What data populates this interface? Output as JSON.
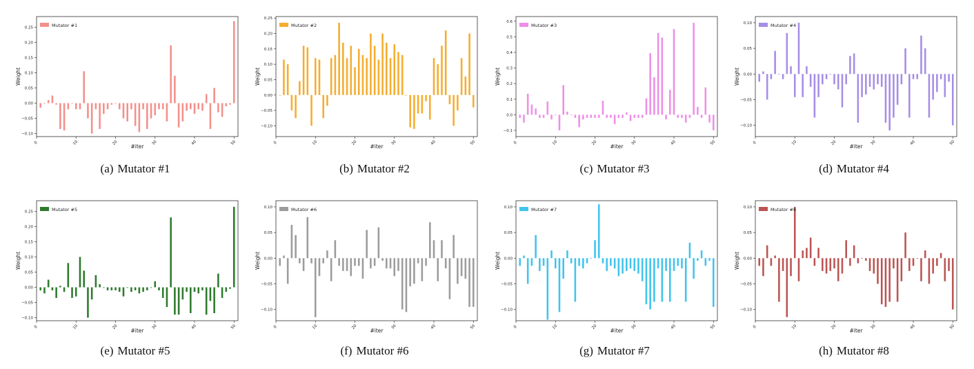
{
  "figure": {
    "ylabel": "Weight",
    "xlabel": "#iter",
    "captions": [
      {
        "label": "(a)",
        "text": "Mutator #1"
      },
      {
        "label": "(b)",
        "text": "Mutator #2"
      },
      {
        "label": "(c)",
        "text": "Mutator #3"
      },
      {
        "label": "(d)",
        "text": "Mutator #4"
      },
      {
        "label": "(e)",
        "text": "Mutator #5"
      },
      {
        "label": "(f)",
        "text": "Mutator #6"
      },
      {
        "label": "(g)",
        "text": "Mutator #7"
      },
      {
        "label": "(h)",
        "text": "Mutator #8"
      }
    ]
  },
  "chart_data": [
    {
      "type": "bar",
      "series": [
        {
          "name": "Mutator #1",
          "color": "#f4908a"
        }
      ],
      "xlabel": "#iter",
      "ylabel": "Weight",
      "xlim": [
        0,
        51
      ],
      "xticks": [
        0,
        10,
        20,
        30,
        40,
        50
      ],
      "ylim": [
        -0.11,
        0.285
      ],
      "yticks": [
        -0.1,
        -0.05,
        0.0,
        0.05,
        0.1,
        0.15,
        0.2,
        0.25
      ],
      "ytick_labels": [
        "−0.10",
        "−0.05",
        "0.00",
        "0.05",
        "0.10",
        "0.15",
        "0.20",
        "0.25"
      ],
      "x": [
        1,
        2,
        3,
        4,
        5,
        6,
        7,
        8,
        9,
        10,
        11,
        12,
        13,
        14,
        15,
        16,
        17,
        18,
        19,
        20,
        21,
        22,
        23,
        24,
        25,
        26,
        27,
        28,
        29,
        30,
        31,
        32,
        33,
        34,
        35,
        36,
        37,
        38,
        39,
        40,
        41,
        42,
        43,
        44,
        45,
        46,
        47,
        48,
        49,
        50
      ],
      "values": [
        -0.015,
        0,
        0.01,
        0.025,
        -0.005,
        -0.085,
        -0.09,
        -0.02,
        0,
        -0.02,
        -0.02,
        0.105,
        -0.05,
        -0.1,
        -0.02,
        -0.085,
        -0.035,
        -0.02,
        -0.005,
        0,
        -0.02,
        -0.05,
        -0.06,
        -0.02,
        -0.075,
        -0.095,
        -0.02,
        -0.085,
        -0.05,
        -0.04,
        -0.02,
        -0.02,
        -0.06,
        0.19,
        0.09,
        -0.08,
        -0.06,
        -0.025,
        -0.02,
        -0.035,
        -0.02,
        -0.025,
        0.03,
        -0.085,
        0.05,
        -0.03,
        -0.045,
        -0.01,
        -0.005,
        0.27
      ]
    },
    {
      "type": "bar",
      "series": [
        {
          "name": "Mutator #2",
          "color": "#f5ad2f"
        }
      ],
      "xlabel": "#iter",
      "ylabel": "Weight",
      "xlim": [
        0,
        51
      ],
      "xticks": [
        0,
        10,
        20,
        30,
        40,
        50
      ],
      "ylim": [
        -0.135,
        0.255
      ],
      "yticks": [
        -0.1,
        -0.05,
        0.0,
        0.05,
        0.1,
        0.15,
        0.2,
        0.25
      ],
      "ytick_labels": [
        "−0.10",
        "−0.05",
        "0.00",
        "0.05",
        "0.10",
        "0.15",
        "0.20",
        "0.25"
      ],
      "x": [
        1,
        2,
        3,
        4,
        5,
        6,
        7,
        8,
        9,
        10,
        11,
        12,
        13,
        14,
        15,
        16,
        17,
        18,
        19,
        20,
        21,
        22,
        23,
        24,
        25,
        26,
        27,
        28,
        29,
        30,
        31,
        32,
        33,
        34,
        35,
        36,
        37,
        38,
        39,
        40,
        41,
        42,
        43,
        44,
        45,
        46,
        47,
        48,
        49,
        50
      ],
      "values": [
        0,
        0.115,
        0.1,
        -0.05,
        -0.075,
        0.045,
        0.16,
        0.155,
        -0.1,
        0.12,
        0.115,
        -0.075,
        -0.035,
        0.12,
        0.13,
        0.235,
        0.17,
        0.12,
        0.16,
        0.09,
        0.15,
        0.13,
        0.12,
        0.2,
        0.16,
        0.115,
        0.2,
        0.17,
        0.12,
        0.165,
        0.14,
        0.13,
        0,
        -0.105,
        -0.11,
        -0.06,
        -0.06,
        -0.02,
        -0.08,
        0.12,
        0.1,
        0.16,
        0.21,
        -0.03,
        -0.1,
        -0.05,
        0.12,
        0.06,
        0.2,
        -0.04
      ]
    },
    {
      "type": "bar",
      "series": [
        {
          "name": "Mutator #3",
          "color": "#ee8fe8"
        }
      ],
      "xlabel": "#iter",
      "ylabel": "Weight",
      "xlim": [
        0,
        51
      ],
      "xticks": [
        0,
        10,
        20,
        30,
        40,
        50
      ],
      "ylim": [
        -0.14,
        0.63
      ],
      "yticks": [
        -0.1,
        0.0,
        0.1,
        0.2,
        0.3,
        0.4,
        0.5,
        0.6
      ],
      "ytick_labels": [
        "−0.1",
        "0.0",
        "0.1",
        "0.2",
        "0.3",
        "0.4",
        "0.5",
        "0.6"
      ],
      "x": [
        1,
        2,
        3,
        4,
        5,
        6,
        7,
        8,
        9,
        10,
        11,
        12,
        13,
        14,
        15,
        16,
        17,
        18,
        19,
        20,
        21,
        22,
        23,
        24,
        25,
        26,
        27,
        28,
        29,
        30,
        31,
        32,
        33,
        34,
        35,
        36,
        37,
        38,
        39,
        40,
        41,
        42,
        43,
        44,
        45,
        46,
        47,
        48,
        49,
        50
      ],
      "values": [
        -0.02,
        -0.05,
        0.135,
        0.065,
        0.04,
        -0.02,
        -0.02,
        0.085,
        -0.03,
        0,
        -0.1,
        0.19,
        0.02,
        0,
        -0.02,
        -0.08,
        -0.03,
        -0.02,
        -0.02,
        -0.02,
        -0.02,
        0.09,
        -0.02,
        -0.02,
        -0.06,
        -0.02,
        -0.02,
        0.015,
        -0.04,
        -0.02,
        -0.02,
        -0.02,
        0.105,
        0.395,
        0.24,
        0.525,
        0.495,
        -0.03,
        0.16,
        0.55,
        -0.02,
        -0.02,
        -0.05,
        -0.02,
        0.59,
        0.05,
        -0.02,
        0.175,
        -0.05,
        -0.1
      ]
    },
    {
      "type": "bar",
      "series": [
        {
          "name": "Mutator #4",
          "color": "#a68ee6"
        }
      ],
      "xlabel": "#iter",
      "ylabel": "Weight",
      "xlim": [
        0,
        51
      ],
      "xticks": [
        0,
        10,
        20,
        30,
        40,
        50
      ],
      "ylim": [
        -0.122,
        0.112
      ],
      "yticks": [
        -0.1,
        -0.05,
        0.0,
        0.05,
        0.1
      ],
      "ytick_labels": [
        "−0.10",
        "−0.05",
        "0.00",
        "0.05",
        "0.10"
      ],
      "x": [
        1,
        2,
        3,
        4,
        5,
        6,
        7,
        8,
        9,
        10,
        11,
        12,
        13,
        14,
        15,
        16,
        17,
        18,
        19,
        20,
        21,
        22,
        23,
        24,
        25,
        26,
        27,
        28,
        29,
        30,
        31,
        32,
        33,
        34,
        35,
        36,
        37,
        38,
        39,
        40,
        41,
        42,
        43,
        44,
        45,
        46,
        47,
        48,
        49,
        50
      ],
      "values": [
        -0.015,
        0.005,
        -0.05,
        -0.01,
        0.045,
        0,
        -0.01,
        0.08,
        0.015,
        -0.045,
        0.1,
        -0.045,
        0.015,
        -0.025,
        -0.085,
        -0.045,
        -0.02,
        -0.01,
        0,
        -0.02,
        -0.03,
        -0.065,
        -0.02,
        0.035,
        0.04,
        -0.095,
        -0.045,
        -0.04,
        -0.025,
        -0.03,
        -0.02,
        -0.025,
        -0.095,
        -0.11,
        -0.085,
        -0.06,
        -0.02,
        0.05,
        -0.085,
        -0.01,
        -0.01,
        0.075,
        0.05,
        -0.085,
        -0.05,
        -0.035,
        -0.01,
        -0.045,
        -0.015,
        -0.1
      ]
    },
    {
      "type": "bar",
      "series": [
        {
          "name": "Mutator #5",
          "color": "#2f7a2e"
        }
      ],
      "xlabel": "#iter",
      "ylabel": "Weight",
      "xlim": [
        0,
        51
      ],
      "xticks": [
        0,
        10,
        20,
        30,
        40,
        50
      ],
      "ylim": [
        -0.11,
        0.285
      ],
      "yticks": [
        -0.1,
        -0.05,
        0.0,
        0.05,
        0.1,
        0.15,
        0.2,
        0.25
      ],
      "ytick_labels": [
        "−0.10",
        "−0.05",
        "0.00",
        "0.05",
        "0.10",
        "0.15",
        "0.20",
        "0.25"
      ],
      "x": [
        1,
        2,
        3,
        4,
        5,
        6,
        7,
        8,
        9,
        10,
        11,
        12,
        13,
        14,
        15,
        16,
        17,
        18,
        19,
        20,
        21,
        22,
        23,
        24,
        25,
        26,
        27,
        28,
        29,
        30,
        31,
        32,
        33,
        34,
        35,
        36,
        37,
        38,
        39,
        40,
        41,
        42,
        43,
        44,
        45,
        46,
        47,
        48,
        49,
        50
      ],
      "values": [
        -0.01,
        -0.02,
        0.025,
        -0.01,
        -0.035,
        0.005,
        -0.015,
        0.08,
        -0.035,
        -0.03,
        0.1,
        0.055,
        -0.1,
        -0.04,
        0.04,
        0.01,
        0,
        -0.01,
        -0.01,
        -0.01,
        -0.015,
        -0.03,
        0,
        -0.015,
        -0.01,
        -0.02,
        -0.015,
        -0.01,
        0,
        0.02,
        -0.01,
        -0.035,
        -0.065,
        0.23,
        -0.09,
        -0.09,
        -0.04,
        -0.015,
        -0.085,
        -0.015,
        -0.02,
        -0.01,
        -0.09,
        -0.045,
        -0.085,
        0.045,
        -0.035,
        -0.015,
        -0.005,
        0.265
      ]
    },
    {
      "type": "bar",
      "series": [
        {
          "name": "Mutator #6",
          "color": "#9c9c9c"
        }
      ],
      "xlabel": "#iter",
      "ylabel": "Weight",
      "xlim": [
        0,
        51
      ],
      "xticks": [
        0,
        10,
        20,
        30,
        40,
        50
      ],
      "ylim": [
        -0.122,
        0.112
      ],
      "yticks": [
        -0.1,
        -0.05,
        0.0,
        0.05,
        0.1
      ],
      "ytick_labels": [
        "−0.10",
        "−0.05",
        "0.00",
        "0.05",
        "0.10"
      ],
      "x": [
        1,
        2,
        3,
        4,
        5,
        6,
        7,
        8,
        9,
        10,
        11,
        12,
        13,
        14,
        15,
        16,
        17,
        18,
        19,
        20,
        21,
        22,
        23,
        24,
        25,
        26,
        27,
        28,
        29,
        30,
        31,
        32,
        33,
        34,
        35,
        36,
        37,
        38,
        39,
        40,
        41,
        42,
        43,
        44,
        45,
        46,
        47,
        48,
        49,
        50
      ],
      "values": [
        -0.015,
        0.005,
        -0.05,
        0.065,
        0.045,
        -0.01,
        -0.025,
        0.08,
        -0.01,
        -0.115,
        -0.035,
        -0.01,
        0.015,
        -0.045,
        0.035,
        -0.015,
        -0.025,
        -0.025,
        -0.035,
        -0.015,
        -0.015,
        -0.04,
        0.055,
        -0.02,
        -0.015,
        0.06,
        -0.005,
        -0.02,
        -0.02,
        -0.035,
        -0.025,
        -0.1,
        -0.105,
        -0.055,
        -0.05,
        -0.01,
        -0.045,
        -0.015,
        0.07,
        0.035,
        -0.045,
        0.035,
        -0.02,
        -0.08,
        0.045,
        -0.05,
        -0.035,
        -0.04,
        -0.095,
        -0.095
      ]
    },
    {
      "type": "bar",
      "series": [
        {
          "name": "Mutator #7",
          "color": "#40c4ee"
        }
      ],
      "xlabel": "#iter",
      "ylabel": "Weight",
      "xlim": [
        0,
        51
      ],
      "xticks": [
        0,
        10,
        20,
        30,
        40,
        50
      ],
      "ylim": [
        -0.122,
        0.112
      ],
      "yticks": [
        -0.1,
        -0.05,
        0.0,
        0.05,
        0.1
      ],
      "ytick_labels": [
        "−0.10",
        "−0.05",
        "0.00",
        "0.05",
        "0.10"
      ],
      "x": [
        1,
        2,
        3,
        4,
        5,
        6,
        7,
        8,
        9,
        10,
        11,
        12,
        13,
        14,
        15,
        16,
        17,
        18,
        19,
        20,
        21,
        22,
        23,
        24,
        25,
        26,
        27,
        28,
        29,
        30,
        31,
        32,
        33,
        34,
        35,
        36,
        37,
        38,
        39,
        40,
        41,
        42,
        43,
        44,
        45,
        46,
        47,
        48,
        49,
        50
      ],
      "values": [
        -0.015,
        0.005,
        -0.05,
        -0.015,
        0.045,
        -0.025,
        -0.015,
        -0.12,
        0.015,
        -0.02,
        -0.105,
        -0.04,
        0.015,
        -0.01,
        -0.085,
        -0.015,
        -0.02,
        -0.01,
        0,
        0.035,
        0.105,
        -0.01,
        -0.025,
        -0.015,
        -0.02,
        -0.035,
        -0.03,
        -0.025,
        -0.02,
        -0.025,
        -0.03,
        -0.045,
        -0.09,
        -0.1,
        -0.085,
        -0.02,
        -0.085,
        -0.025,
        -0.085,
        -0.025,
        -0.015,
        -0.02,
        -0.085,
        0.03,
        -0.04,
        -0.005,
        0.015,
        -0.015,
        -0.005,
        -0.095
      ]
    },
    {
      "type": "bar",
      "series": [
        {
          "name": "Mutator #8",
          "color": "#bb5553"
        }
      ],
      "xlabel": "#iter",
      "ylabel": "Weight",
      "xlim": [
        0,
        51
      ],
      "xticks": [
        0,
        10,
        20,
        30,
        40,
        50
      ],
      "ylim": [
        -0.122,
        0.112
      ],
      "yticks": [
        -0.1,
        -0.05,
        0.0,
        0.05,
        0.1
      ],
      "ytick_labels": [
        "−0.10",
        "−0.05",
        "0.00",
        "0.05",
        "0.10"
      ],
      "x": [
        1,
        2,
        3,
        4,
        5,
        6,
        7,
        8,
        9,
        10,
        11,
        12,
        13,
        14,
        15,
        16,
        17,
        18,
        19,
        20,
        21,
        22,
        23,
        24,
        25,
        26,
        27,
        28,
        29,
        30,
        31,
        32,
        33,
        34,
        35,
        36,
        37,
        38,
        39,
        40,
        41,
        42,
        43,
        44,
        45,
        46,
        47,
        48,
        49,
        50
      ],
      "values": [
        -0.015,
        -0.035,
        0.025,
        -0.015,
        0.005,
        -0.085,
        -0.025,
        -0.115,
        -0.035,
        0.1,
        -0.045,
        0.015,
        0.02,
        0.04,
        -0.015,
        0.02,
        -0.025,
        -0.03,
        -0.025,
        -0.02,
        -0.045,
        -0.03,
        0.035,
        -0.015,
        0.025,
        -0.01,
        0,
        -0.005,
        -0.025,
        -0.03,
        -0.05,
        -0.09,
        -0.095,
        -0.085,
        -0.02,
        -0.085,
        -0.045,
        0.05,
        -0.025,
        -0.015,
        0,
        -0.045,
        0.015,
        -0.05,
        -0.03,
        -0.015,
        0.01,
        -0.045,
        -0.025,
        -0.1
      ]
    }
  ]
}
